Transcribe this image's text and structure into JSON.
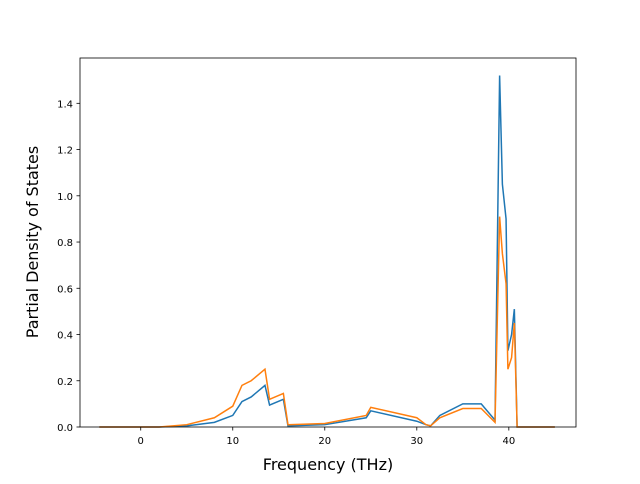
{
  "chart_data": {
    "type": "line",
    "xlabel": "Frequency (THz)",
    "ylabel": "Partial Density of States",
    "x": [
      -4.5,
      2,
      5,
      8,
      10,
      11,
      12,
      13.5,
      14,
      15.5,
      16,
      20,
      24.5,
      25,
      30,
      31,
      31.5,
      32.5,
      35,
      37,
      38.5,
      39,
      39.3,
      39.7,
      39.9,
      40.3,
      40.6,
      40.9,
      45
    ],
    "series": [
      {
        "color": "#1f77b4",
        "values": [
          0,
          0,
          0.005,
          0.02,
          0.05,
          0.11,
          0.13,
          0.18,
          0.095,
          0.12,
          0.005,
          0.01,
          0.04,
          0.07,
          0.025,
          0.01,
          0.005,
          0.05,
          0.1,
          0.1,
          0.03,
          1.52,
          1.05,
          0.9,
          0.33,
          0.4,
          0.51,
          0,
          0
        ]
      },
      {
        "color": "#ff7f0e",
        "values": [
          0,
          0,
          0.01,
          0.04,
          0.09,
          0.18,
          0.2,
          0.25,
          0.12,
          0.145,
          0.01,
          0.015,
          0.05,
          0.085,
          0.04,
          0.01,
          0.005,
          0.04,
          0.08,
          0.08,
          0.02,
          0.91,
          0.75,
          0.62,
          0.25,
          0.3,
          0.45,
          0,
          0
        ]
      }
    ],
    "xlim": [
      -6.6,
      47.3
    ],
    "xticks": [
      0,
      10,
      20,
      30,
      40
    ],
    "ylim": [
      0,
      1.596
    ],
    "yticks": [
      {
        "value": 0,
        "label": "0.0"
      },
      0.2,
      0.4,
      0.6,
      0.8,
      {
        "value": 1,
        "label": "1.0"
      },
      1.2,
      1.4
    ]
  }
}
